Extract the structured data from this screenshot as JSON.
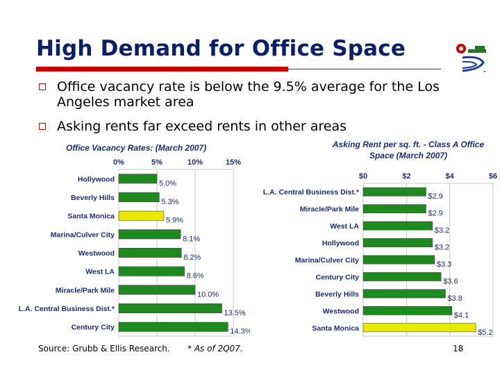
{
  "slide": {
    "title": "High Demand for Office Space",
    "bullets": [
      "Office vacancy rate is below the 9.5% average for the Los Angeles market area",
      "Asking rents far exceed rents in other areas"
    ],
    "source": "Source: Grubb & Ellis Research.",
    "footnote": "* As of 2Q07.",
    "page_number": "18"
  },
  "colors": {
    "title": "#0a1e6e",
    "accent_red": "#cc0000",
    "bar_green": "#1e8a1e",
    "bar_highlight": "#e8e800",
    "title_blue": "#1a2a80"
  },
  "chart_data": [
    {
      "type": "bar",
      "orientation": "horizontal",
      "title": "Office Vacancy Rates: (March 2007)",
      "categories": [
        "Hollywood",
        "Beverly Hills",
        "Santa Monica",
        "Marina/Culver City",
        "Westwood",
        "West LA",
        "Miracle/Park Mile",
        "L.A. Central Business Dist.*",
        "Century City"
      ],
      "values": [
        5.0,
        5.3,
        5.9,
        8.1,
        8.2,
        8.6,
        10.0,
        13.5,
        14.3
      ],
      "data_labels": [
        "5.0%",
        "5.3%",
        "5.9%",
        "8.1%",
        "8.2%",
        "8.6%",
        "10.0%",
        "13.5%",
        "14.3%"
      ],
      "highlight_index": 2,
      "xlim": [
        0,
        15
      ],
      "ticks": [
        0,
        5,
        10,
        15
      ],
      "tick_labels": [
        "0%",
        "5%",
        "10%",
        "15%"
      ],
      "axis_position": "top",
      "grid": true
    },
    {
      "type": "bar",
      "orientation": "horizontal",
      "title": "Asking Rent per sq. ft. - Class A Office Space (March 2007)",
      "title_lines": [
        "Asking Rent per sq. ft. - Class A Office",
        "Space (March 2007)"
      ],
      "categories": [
        "L.A. Central Business Dist.*",
        "Miracle/Park Mile",
        "West LA",
        "Hollywood",
        "Marina/Culver City",
        "Century City",
        "Beverly Hills",
        "Westwood",
        "Santa Monica"
      ],
      "values": [
        2.9,
        2.9,
        3.2,
        3.2,
        3.3,
        3.6,
        3.8,
        4.1,
        5.2
      ],
      "data_labels": [
        "$2.9",
        "$2.9",
        "$3.2",
        "$3.2",
        "$3.3",
        "$3.6",
        "$3.8",
        "$4.1",
        "$5.2"
      ],
      "highlight_index": 8,
      "xlim": [
        0,
        6
      ],
      "ticks": [
        0,
        2,
        4,
        6
      ],
      "tick_labels": [
        "$0",
        "$2",
        "$4",
        "$6"
      ],
      "axis_position": "top",
      "grid": true
    }
  ]
}
